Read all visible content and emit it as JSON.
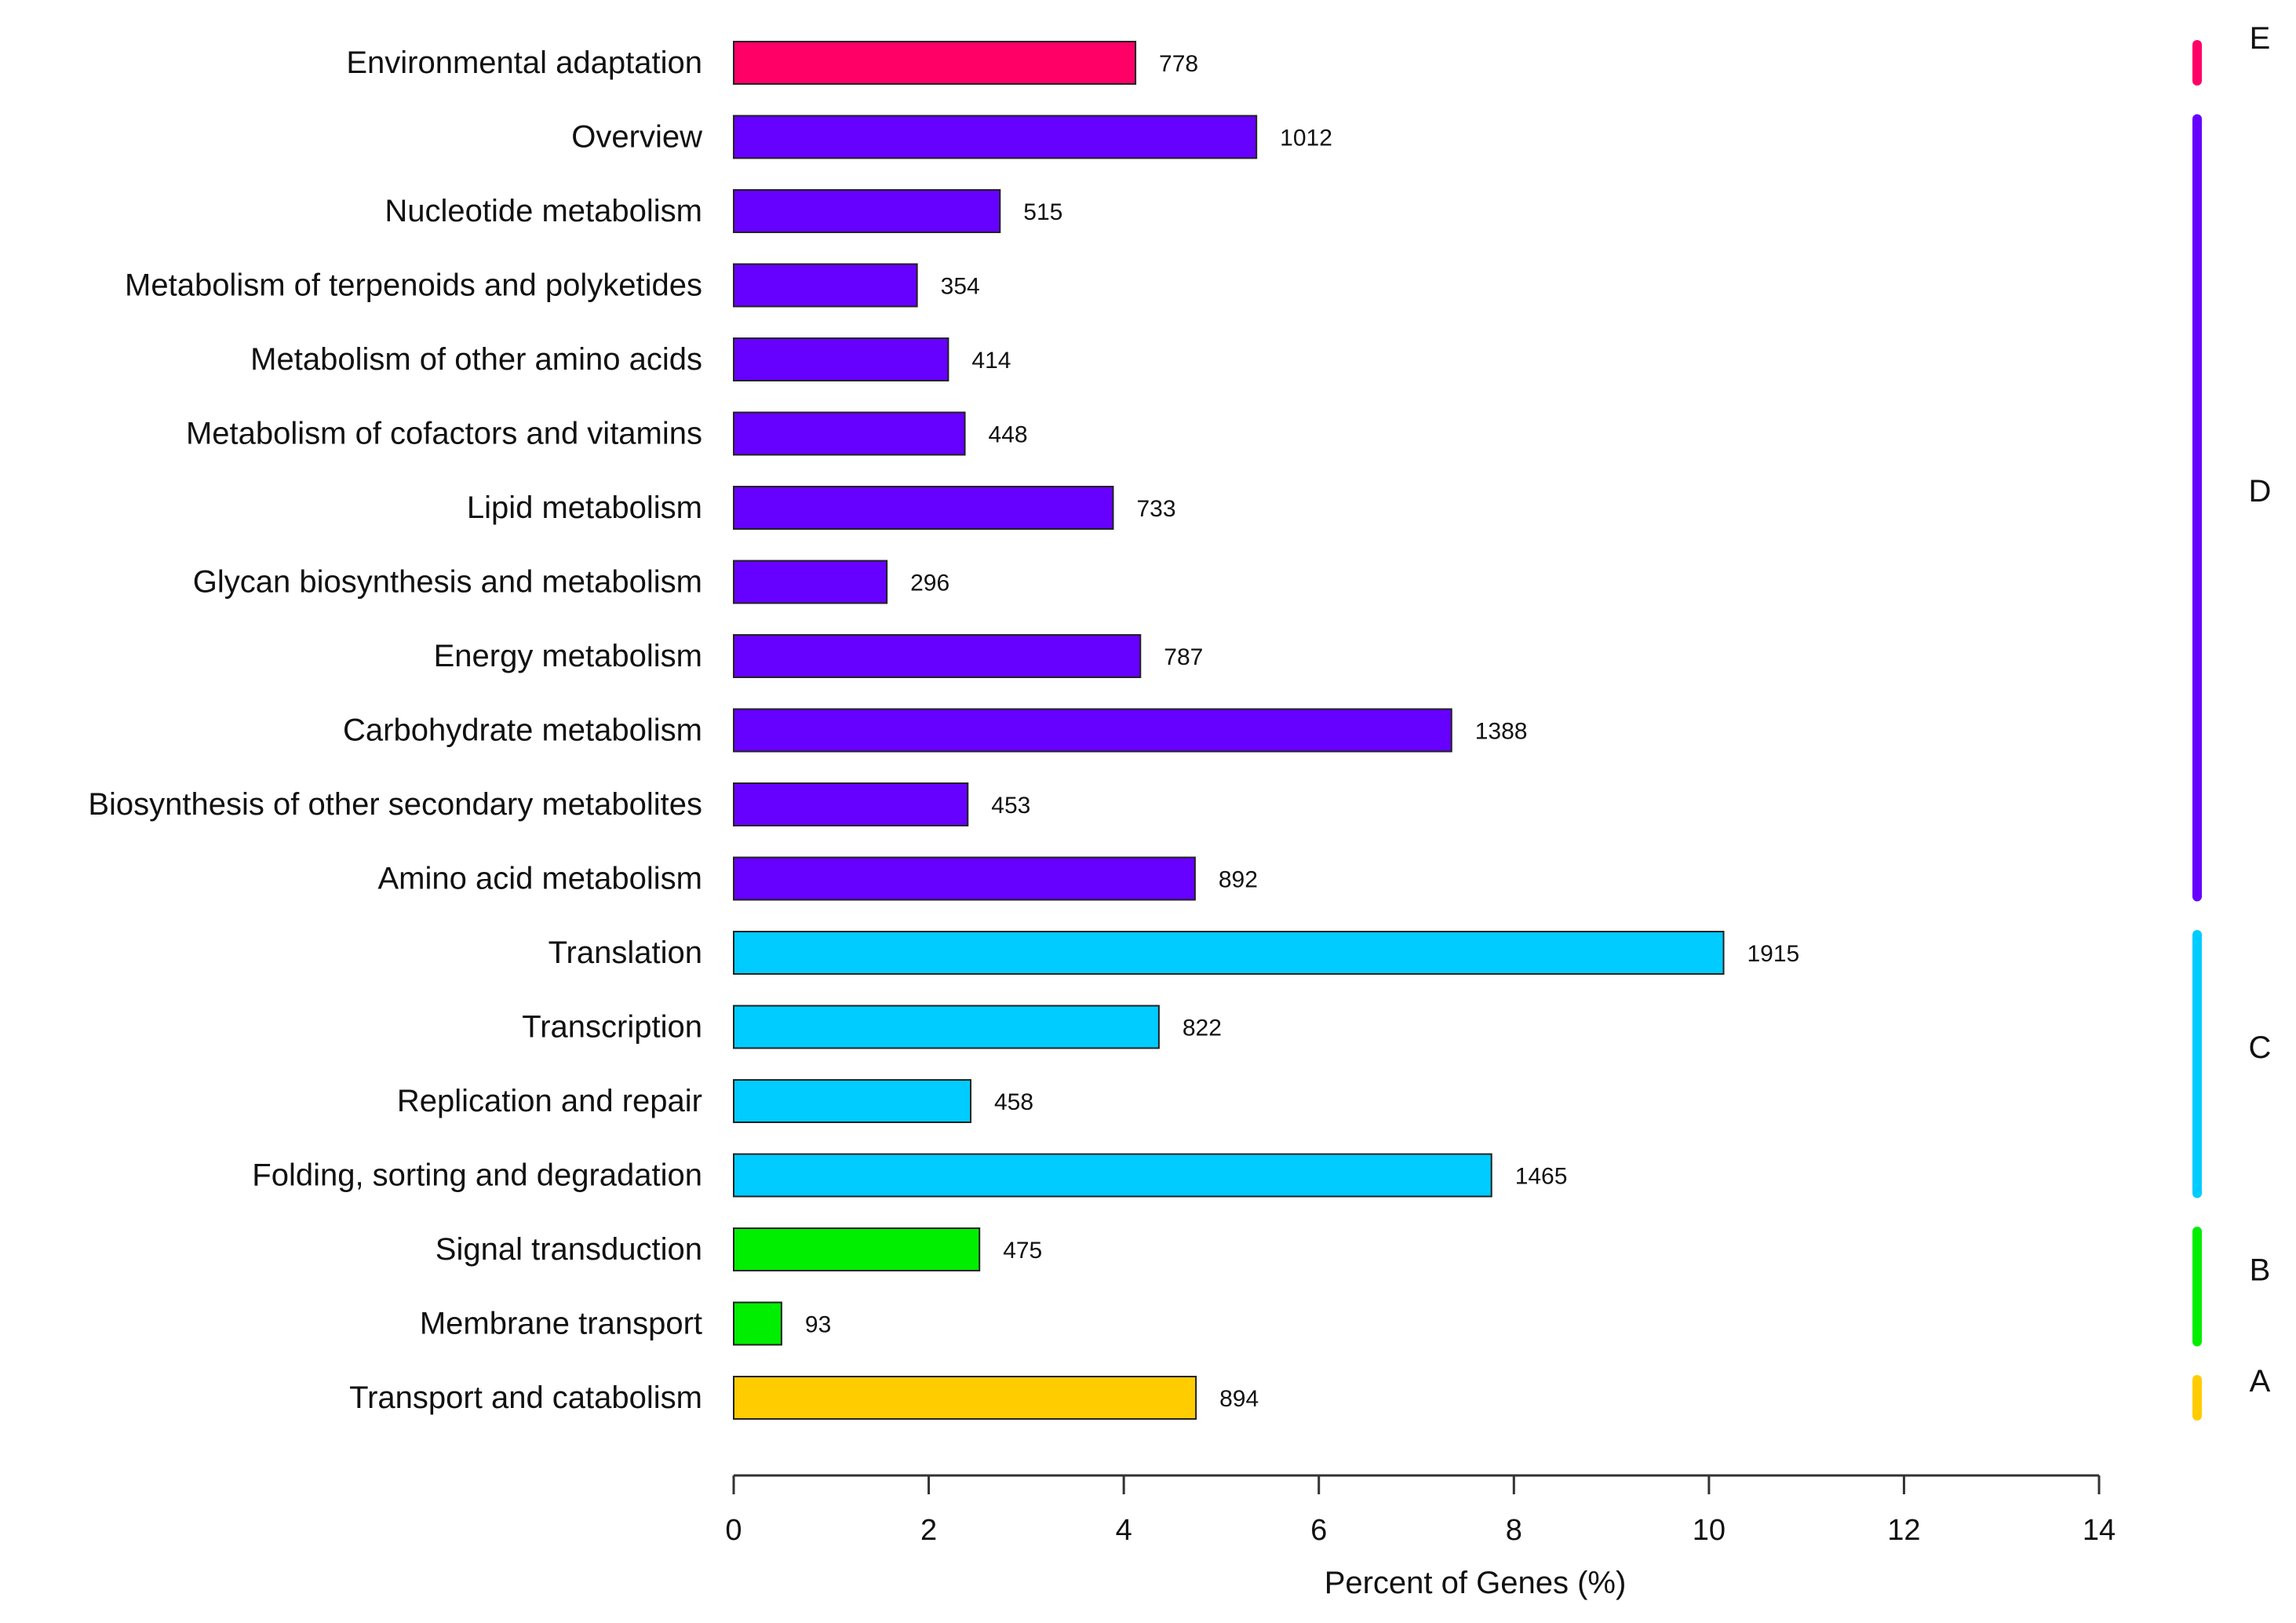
{
  "chart_data": {
    "type": "bar",
    "orientation": "horizontal",
    "title": "",
    "xlabel": "Percent of Genes (%)",
    "ylabel": "",
    "xlim": [
      0,
      14
    ],
    "xticks": [
      "0",
      "2",
      "4",
      "6",
      "8",
      "10",
      "12",
      "14"
    ],
    "grid": false,
    "groups": [
      {
        "name": "E",
        "color": "#ff0066"
      },
      {
        "name": "D",
        "color": "#6600ff"
      },
      {
        "name": "C",
        "color": "#00ccff"
      },
      {
        "name": "B",
        "color": "#00ee00"
      },
      {
        "name": "A",
        "color": "#ffcc00"
      }
    ],
    "categories": [
      "Environmental adaptation",
      "Overview",
      "Nucleotide metabolism",
      "Metabolism of terpenoids and polyketides",
      "Metabolism of other amino acids",
      "Metabolism of cofactors and vitamins",
      "Lipid metabolism",
      "Glycan biosynthesis and metabolism",
      "Energy metabolism",
      "Carbohydrate metabolism",
      "Biosynthesis of other secondary metabolites",
      "Amino acid metabolism",
      "Translation",
      "Transcription",
      "Replication and repair",
      "Folding, sorting and degradation",
      "Signal transduction",
      "Membrane transport",
      "Transport and catabolism"
    ],
    "percent": [
      4.12,
      5.36,
      2.73,
      1.88,
      2.2,
      2.37,
      3.89,
      1.57,
      4.17,
      7.36,
      2.4,
      4.73,
      10.15,
      4.36,
      2.43,
      7.77,
      2.52,
      0.49,
      4.74
    ],
    "counts": [
      "778",
      "1012",
      "515",
      "354",
      "414",
      "448",
      "733",
      "296",
      "787",
      "1388",
      "453",
      "892",
      "1915",
      "822",
      "458",
      "1465",
      "475",
      "93",
      "894"
    ],
    "bar_group": [
      "E",
      "D",
      "D",
      "D",
      "D",
      "D",
      "D",
      "D",
      "D",
      "D",
      "D",
      "D",
      "C",
      "C",
      "C",
      "C",
      "B",
      "B",
      "A"
    ]
  }
}
